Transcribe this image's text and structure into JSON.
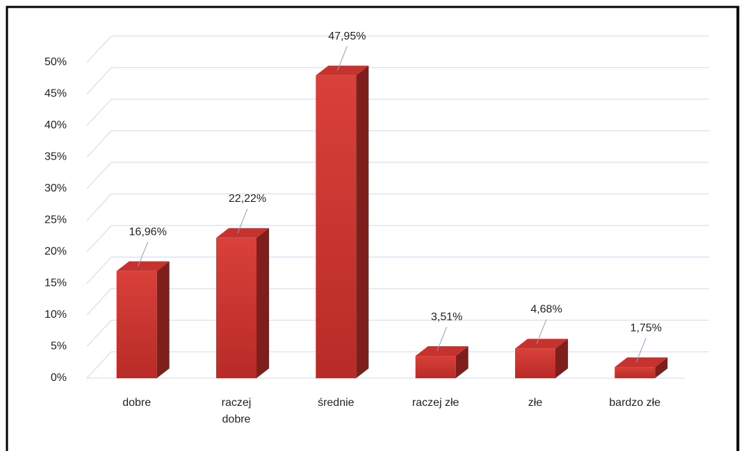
{
  "chart_data": {
    "type": "bar",
    "categories": [
      "dobre",
      "raczej dobre",
      "średnie",
      "raczej złe",
      "złe",
      "bardzo złe"
    ],
    "values": [
      16.96,
      22.22,
      47.95,
      3.51,
      4.68,
      1.75
    ],
    "value_labels": [
      "16,96%",
      "22,22%",
      "47,95%",
      "3,51%",
      "4,68%",
      "1,75%"
    ],
    "color": "#c9302c",
    "ylim": [
      0,
      50
    ],
    "yticks": [
      {
        "value": 0,
        "label": "0%"
      },
      {
        "value": 5,
        "label": "5%"
      },
      {
        "value": 10,
        "label": "10%"
      },
      {
        "value": 15,
        "label": "15%"
      },
      {
        "value": 20,
        "label": "20%"
      },
      {
        "value": 25,
        "label": "25%"
      },
      {
        "value": 30,
        "label": "30%"
      },
      {
        "value": 35,
        "label": "35%"
      },
      {
        "value": 40,
        "label": "40%"
      },
      {
        "value": 45,
        "label": "45%"
      },
      {
        "value": 50,
        "label": "50%"
      }
    ],
    "grid": true
  }
}
